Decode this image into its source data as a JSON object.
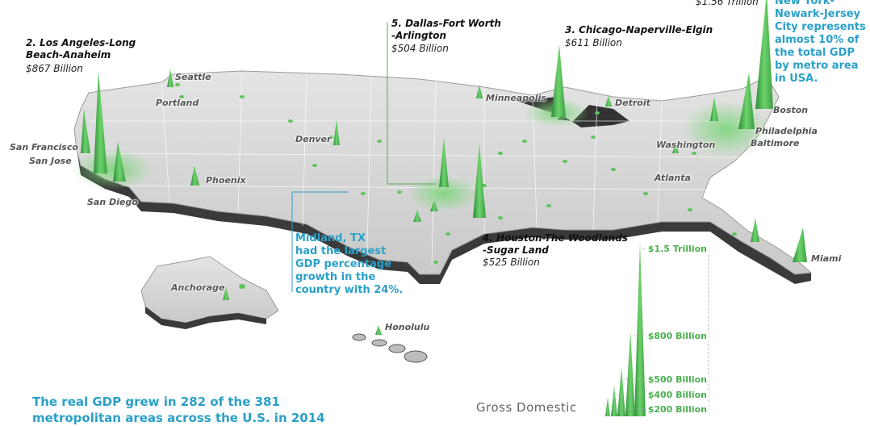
{
  "top_cut_value": "$1.56 Trillion",
  "metros": [
    {
      "rank_name": "2. Los Angeles-Long",
      "rank_name2": "Beach-Anaheim",
      "value": "$867 Billion"
    },
    {
      "rank_name": "5. Dallas-Fort Worth",
      "rank_name2": "-Arlington",
      "value": "$504 Billion"
    },
    {
      "rank_name": "3. Chicago-Naperville-Elgin",
      "rank_name2": "",
      "value": "$611 Billion"
    },
    {
      "rank_name": "4. Houston-The Woodlands",
      "rank_name2": "-Sugar Land",
      "value": "$525 Billion"
    }
  ],
  "ny_callout": [
    "New York-",
    "Newark-Jersey",
    "City represents",
    "almost 10% of",
    "the total GDP",
    "by metro area",
    "in USA."
  ],
  "midland_callout": [
    "Midland, TX",
    "had the largest",
    "GDP percentage",
    "growth in the",
    "country with 24%."
  ],
  "cities": {
    "seattle": "Seattle",
    "portland": "Portland",
    "san_francisco": "San Francisco",
    "san_jose": "San Jose",
    "san_diego": "San Diego",
    "phoenix": "Phoenix",
    "denver": "Denver",
    "minneapolis": "Minneapolis",
    "detroit": "Detroit",
    "boston": "Boston",
    "philadelphia": "Philadelphia",
    "baltimore": "Baltimore",
    "washington": "Washington",
    "atlanta": "Atlanta",
    "miami": "Miami",
    "anchorage": "Anchorage",
    "honolulu": "Honolulu"
  },
  "scale": {
    "l1": "$1.5 Trillion",
    "l2": "$800 Billion",
    "l3": "$500 Billion",
    "l4": "$400 Billion",
    "l5": "$200 Billion"
  },
  "bottom_title": [
    "The real GDP grew in 282 of the 381",
    "metropolitan areas across the U.S. in 2014"
  ],
  "gdp_title": "Gross Domestic",
  "colors": {
    "accent": "#2aa0c8",
    "spike": "#4caf50",
    "land": "#d8d8d8"
  }
}
